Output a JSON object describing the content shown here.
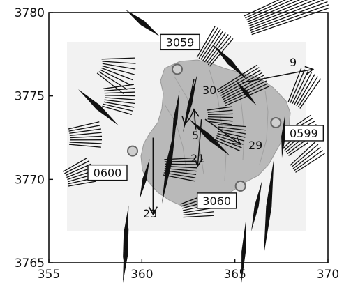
{
  "chart_data": {
    "type": "map",
    "x_ticks": [
      "355",
      "360",
      "365",
      "370"
    ],
    "y_ticks": [
      "3780",
      "3775",
      "3770",
      "3765"
    ],
    "xlim": [
      355,
      370
    ],
    "ylim": [
      3765,
      3780
    ],
    "stations": [
      {
        "id": "3059",
        "x": 361.9,
        "y": 3776.6
      },
      {
        "id": "0599",
        "x": 367.2,
        "y": 3773.4
      },
      {
        "id": "0600",
        "x": 359.5,
        "y": 3771.7
      },
      {
        "id": "3060",
        "x": 365.3,
        "y": 3769.6
      }
    ],
    "arrows": [
      {
        "label": "9",
        "x0": 365.4,
        "y0": 3775.8,
        "x1": 369.2,
        "y1": 3776.6
      },
      {
        "label": "30",
        "x0": 362.8,
        "y0": 3776.0,
        "x1": 362.3,
        "y1": 3773.3
      },
      {
        "label": "5",
        "x0": 362.9,
        "y0": 3773.0,
        "x1": 362.8,
        "y1": 3774.2
      },
      {
        "label": "21",
        "x0": 363.2,
        "y0": 3773.6,
        "x1": 363.0,
        "y1": 3770.8
      },
      {
        "label": "29",
        "x0": 363.4,
        "y0": 3773.6,
        "x1": 365.3,
        "y1": 3772.1
      },
      {
        "label": "23",
        "x0": 360.6,
        "y0": 3772.5,
        "x1": 360.6,
        "y1": 3767.9
      }
    ]
  },
  "colors": {
    "background": "#ffffff",
    "mapbox": "#f1f1f1",
    "terrain": "#b8b8b8",
    "lines": "#111111"
  }
}
